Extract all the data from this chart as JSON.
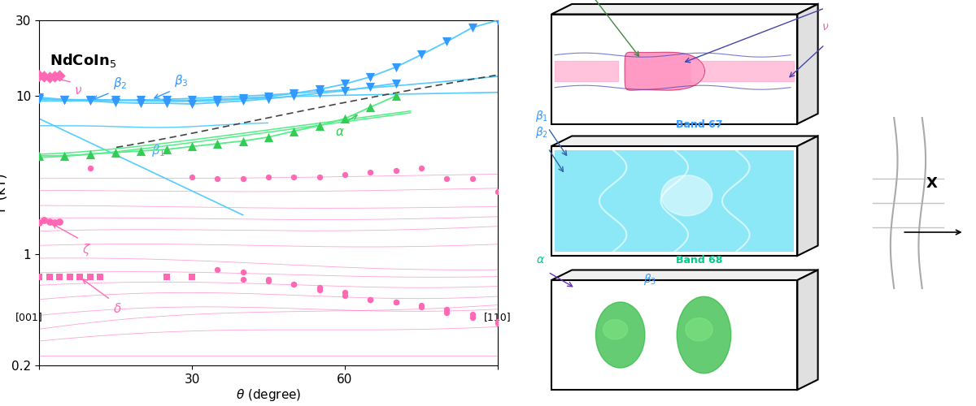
{
  "pink": "#FF69B4",
  "blue": "#3399FF",
  "green": "#33CC55",
  "cyan_line": "#55CCFF",
  "green_line": "#55EE88",
  "band66_color": "#FF69B4",
  "band67_color": "#00CCFF",
  "band68_color": "#33BB44",
  "title_text": "NdCoIn$_5$",
  "xlabel": "θ (degree)",
  "ylabel": "F (kT)",
  "xlim": [
    0,
    90
  ],
  "ylim": [
    0.2,
    30
  ],
  "b2x": [
    0,
    5,
    10,
    15,
    20,
    25,
    30,
    35,
    40,
    45,
    50,
    55,
    60,
    65,
    70
  ],
  "b2y": [
    9.8,
    9.5,
    9.3,
    9.1,
    9.0,
    9.0,
    8.9,
    9.1,
    9.3,
    9.6,
    10.0,
    10.4,
    10.8,
    11.4,
    12.0
  ],
  "b3x": [
    0,
    5,
    10,
    15,
    20,
    25,
    30,
    35,
    40,
    45,
    50,
    55,
    60,
    65,
    70,
    75,
    80,
    85,
    90
  ],
  "b3y": [
    9.6,
    9.5,
    9.4,
    9.4,
    9.4,
    9.4,
    9.4,
    9.5,
    9.7,
    9.9,
    10.4,
    11.0,
    11.9,
    13.2,
    15.2,
    18.2,
    22.0,
    27.0,
    30.0
  ],
  "alphax": [
    0,
    5,
    10,
    15,
    20,
    25,
    30,
    35,
    40,
    45,
    50,
    55,
    60,
    65,
    70
  ],
  "alphay": [
    4.2,
    4.2,
    4.3,
    4.4,
    4.5,
    4.6,
    4.8,
    5.0,
    5.2,
    5.5,
    6.0,
    6.5,
    7.2,
    8.5,
    10.0
  ],
  "nux": [
    0,
    1,
    2,
    3,
    4
  ],
  "nuy": [
    13.5,
    13.3,
    13.1,
    13.3,
    13.5
  ],
  "dx": [
    0,
    2,
    4,
    6,
    8,
    10,
    12,
    25,
    30
  ],
  "dy": [
    0.72,
    0.72,
    0.72,
    0.72,
    0.72,
    0.72,
    0.72,
    0.72,
    0.72
  ],
  "zx": [
    0,
    1,
    2,
    3,
    4
  ],
  "zy": [
    1.6,
    1.65,
    1.62,
    1.6,
    1.62
  ],
  "pink_circ_x": [
    10,
    30,
    35,
    40,
    45,
    50,
    55,
    60,
    65,
    70,
    75,
    80,
    85,
    90,
    35,
    40,
    45,
    50,
    55,
    60,
    65,
    70,
    75,
    80,
    85,
    90,
    40,
    45,
    50,
    55,
    60,
    65,
    70,
    75,
    80,
    85,
    90
  ],
  "pink_circ_y": [
    3.5,
    3.1,
    3.0,
    3.0,
    3.1,
    3.1,
    3.1,
    3.2,
    3.3,
    3.4,
    3.5,
    3.0,
    3.0,
    2.5,
    0.8,
    0.78,
    0.7,
    0.65,
    0.6,
    0.55,
    0.52,
    0.5,
    0.48,
    0.45,
    0.42,
    0.38,
    0.7,
    0.68,
    0.65,
    0.62,
    0.58,
    0.52,
    0.5,
    0.47,
    0.43,
    0.4,
    0.37
  ]
}
